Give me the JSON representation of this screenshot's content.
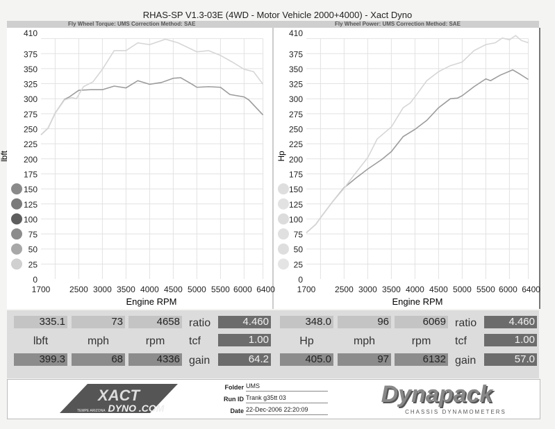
{
  "header": {
    "title": "RHAS-SP V1.3-03E  (4WD - Motor Vehicle 2000+4000) - Xact Dyno",
    "left_subtitle": "Fly Wheel Torque: UMS     Correction Method: SAE",
    "right_subtitle": "Fly Wheel Power: UMS     Correction Method: SAE"
  },
  "chart_data": [
    {
      "type": "line",
      "xlabel": "Engine RPM",
      "ylabel": "lbft",
      "ylim": [
        0,
        410
      ],
      "xlim": [
        1700,
        6400
      ],
      "yticks": [
        0,
        25,
        50,
        75,
        100,
        125,
        150,
        175,
        200,
        225,
        250,
        275,
        300,
        325,
        350,
        375,
        410
      ],
      "xticks": [
        1700,
        2500,
        3000,
        3500,
        4000,
        4500,
        5000,
        5500,
        6000,
        6400
      ],
      "grid": true,
      "series": [
        {
          "color": "#9c9c9c",
          "x": [
            1700,
            1850,
            2000,
            2200,
            2300,
            2500,
            2750,
            3000,
            3250,
            3500,
            3750,
            4000,
            4250,
            4500,
            4658,
            4900,
            5000,
            5250,
            5500,
            5700,
            6000,
            6100,
            6400
          ],
          "y": [
            240,
            251,
            276,
            299,
            303,
            314,
            315,
            315,
            321,
            318,
            330,
            324,
            327,
            334,
            335,
            324,
            319,
            320,
            319,
            307,
            303,
            298,
            273
          ]
        },
        {
          "color": "#d6d6d6",
          "x": [
            1700,
            1850,
            2000,
            2200,
            2350,
            2450,
            2600,
            2800,
            3000,
            3250,
            3500,
            3750,
            4000,
            4336,
            4600,
            5000,
            5250,
            5500,
            5750,
            6000,
            6200,
            6400
          ],
          "y": [
            240,
            251,
            276,
            298,
            302,
            300,
            320,
            328,
            349,
            380,
            380,
            393,
            390,
            399,
            393,
            378,
            380,
            372,
            361,
            349,
            345,
            324
          ]
        }
      ]
    },
    {
      "type": "line",
      "xlabel": "Engine RPM",
      "ylabel": "Hp",
      "ylim": [
        0,
        410
      ],
      "xlim": [
        1700,
        6400
      ],
      "yticks": [
        0,
        25,
        50,
        75,
        100,
        125,
        150,
        175,
        200,
        225,
        250,
        275,
        300,
        325,
        350,
        375,
        410
      ],
      "xticks": [
        1700,
        2500,
        3000,
        3500,
        4000,
        4500,
        5000,
        5500,
        6000,
        6400
      ],
      "grid": true,
      "series": [
        {
          "color": "#9c9c9c",
          "x": [
            1700,
            1900,
            2000,
            2250,
            2500,
            2750,
            3000,
            3300,
            3500,
            3750,
            4000,
            4250,
            4500,
            4750,
            4900,
            5000,
            5250,
            5500,
            5600,
            5800,
            6069,
            6200,
            6400
          ],
          "y": [
            77,
            91,
            102,
            128,
            152,
            168,
            183,
            199,
            212,
            237,
            249,
            264,
            285,
            300,
            301,
            305,
            320,
            333,
            330,
            339,
            348,
            342,
            332
          ]
        },
        {
          "color": "#d6d6d6",
          "x": [
            1700,
            1900,
            2000,
            2250,
            2500,
            2700,
            3000,
            3200,
            3500,
            3750,
            3900,
            4000,
            4250,
            4500,
            4750,
            5000,
            5250,
            5500,
            5700,
            5850,
            6000,
            6132,
            6250,
            6400
          ],
          "y": [
            77,
            91,
            102,
            128,
            151,
            172,
            202,
            233,
            253,
            285,
            293,
            303,
            330,
            345,
            355,
            361,
            380,
            390,
            393,
            401,
            398,
            405,
            397,
            393
          ]
        }
      ]
    }
  ],
  "legend_dots": {
    "left": [
      "#8a8a8a",
      "#7a7a7a",
      "#5e5e5e",
      "#8c8c8c",
      "#a8a8a8",
      "#d0d0d0"
    ],
    "right": [
      "#dedede",
      "#e2e2e2",
      "#dcdcdc",
      "#e0e0e0",
      "#dedede",
      "#e4e4e4"
    ]
  },
  "readout": {
    "left": {
      "top": [
        "335.1",
        "73",
        "4658"
      ],
      "units": [
        "lbft",
        "mph",
        "rpm"
      ],
      "bottom": [
        "399.3",
        "68",
        "4336"
      ],
      "ratio_label": "ratio",
      "ratio": "4.460",
      "tcf_label": "tcf",
      "tcf": "1.00",
      "gain_label": "gain",
      "gain": "64.2"
    },
    "right": {
      "top": [
        "348.0",
        "96",
        "6069"
      ],
      "units": [
        "Hp",
        "mph",
        "rpm"
      ],
      "bottom": [
        "405.0",
        "97",
        "6132"
      ],
      "ratio_label": "ratio",
      "ratio": "4.460",
      "tcf_label": "tcf",
      "tcf": "1.00",
      "gain_label": "gain",
      "gain": "57.0"
    }
  },
  "footer": {
    "folder_label": "Folder",
    "folder": "UMS",
    "runid_label": "Run ID",
    "runid": "Trank g35tt 03",
    "date_label": "Date",
    "date": "22-Dec-2006  22:20:09",
    "xact_logo": "XACT DYNO .COM",
    "xact_tagline": "TEMPE ARIZONA",
    "dynapack_logo": "Dynapack",
    "dynapack_tagline": "CHASSIS DYNAMOMETERS"
  }
}
